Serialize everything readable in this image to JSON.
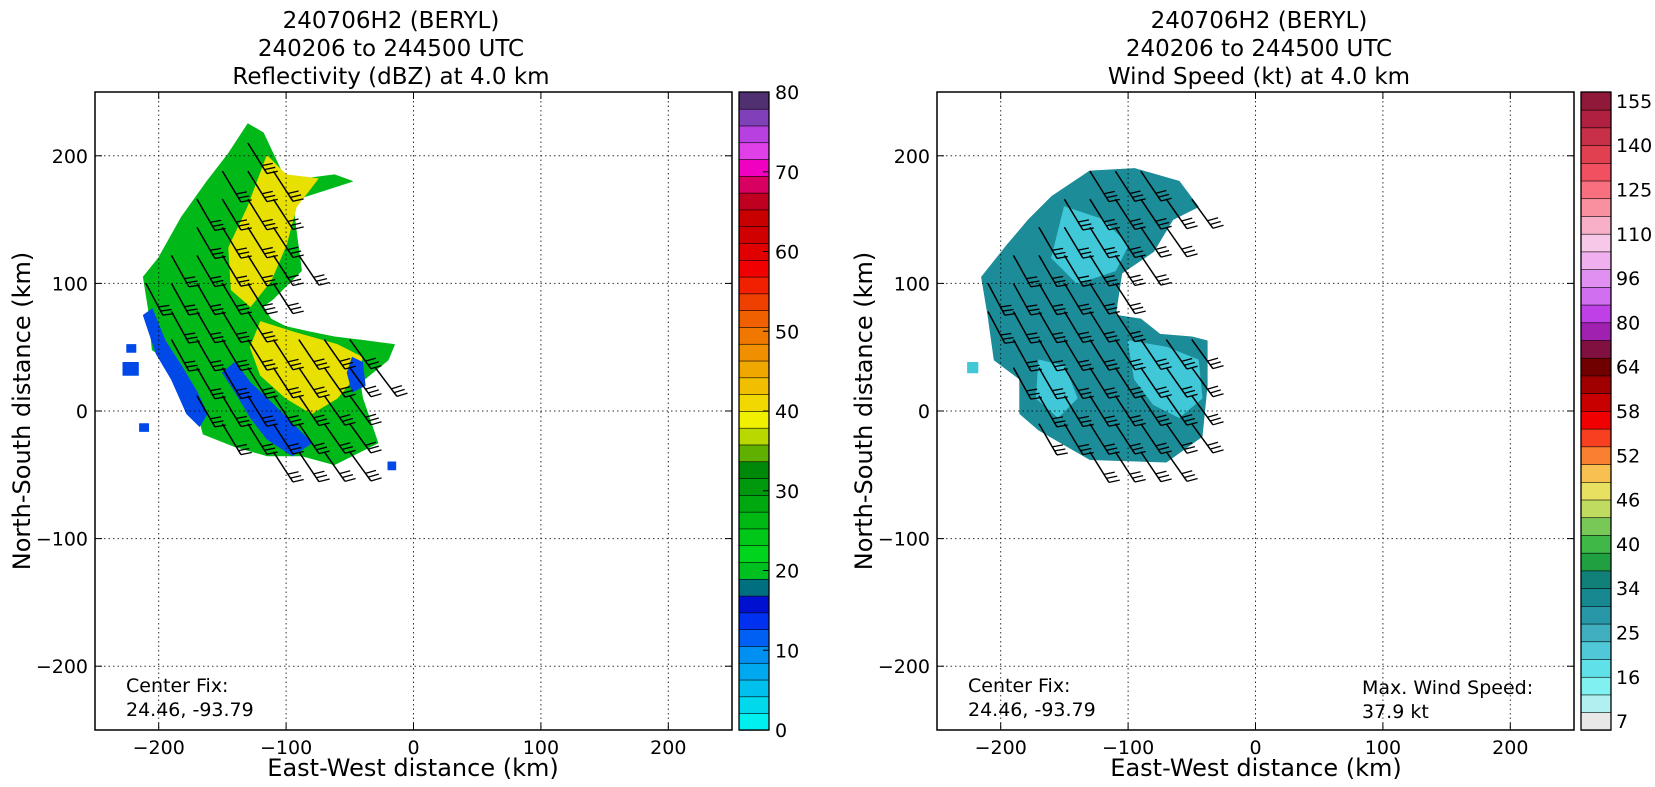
{
  "chart_data": [
    {
      "type": "heatmap",
      "title_lines": [
        "240706H2 (BERYL)",
        "240206 to 244500 UTC",
        "Reflectivity (dBZ) at 4.0 km"
      ],
      "xlabel": "East-West distance (km)",
      "ylabel": "North-South distance (km)",
      "xlim": [
        -250,
        250
      ],
      "ylim": [
        -250,
        250
      ],
      "xticks": [
        -200,
        -100,
        0,
        100,
        200
      ],
      "yticks": [
        -200,
        -100,
        0,
        100,
        200
      ],
      "grid": true,
      "annotation": {
        "line1": "Center Fix:",
        "line2": "24.46, -93.79"
      },
      "colorbar": {
        "min": 0,
        "max": 80,
        "step": 2.5,
        "ticks": [
          0,
          10,
          20,
          30,
          40,
          50,
          60,
          70,
          80
        ],
        "colors": [
          "#00f0f0",
          "#00d8ec",
          "#00c0ee",
          "#00a8f0",
          "#0090f2",
          "#0060f4",
          "#0030f0",
          "#0010d0",
          "#007080",
          "#00c020",
          "#00d41c",
          "#00c818",
          "#00b814",
          "#00a810",
          "#00980c",
          "#008808",
          "#60b000",
          "#b8d800",
          "#f0f000",
          "#f0d800",
          "#f0c000",
          "#f0a800",
          "#f09000",
          "#f07800",
          "#f06000",
          "#f04000",
          "#f02000",
          "#f00000",
          "#e00000",
          "#d00000",
          "#c80000",
          "#c00020",
          "#d80060",
          "#f000c0",
          "#e040e8",
          "#b840e0",
          "#8040b8",
          "#503070"
        ]
      },
      "field_region_outline": [
        [
          -130,
          225
        ],
        [
          -118,
          218
        ],
        [
          -100,
          180
        ],
        [
          -62,
          185
        ],
        [
          -48,
          180
        ],
        [
          -95,
          165
        ],
        [
          -92,
          140
        ],
        [
          -88,
          110
        ],
        [
          -110,
          88
        ],
        [
          -118,
          82
        ],
        [
          -112,
          72
        ],
        [
          -100,
          66
        ],
        [
          -82,
          62
        ],
        [
          -62,
          58
        ],
        [
          -38,
          55
        ],
        [
          -15,
          52
        ],
        [
          -20,
          40
        ],
        [
          -42,
          22
        ],
        [
          -40,
          10
        ],
        [
          -28,
          -25
        ],
        [
          -62,
          -42
        ],
        [
          -88,
          -35
        ],
        [
          -115,
          -35
        ],
        [
          -140,
          -28
        ],
        [
          -165,
          -18
        ],
        [
          -172,
          8
        ],
        [
          -178,
          30
        ],
        [
          -205,
          48
        ],
        [
          -208,
          80
        ],
        [
          -212,
          105
        ],
        [
          -200,
          120
        ],
        [
          -182,
          152
        ],
        [
          -162,
          180
        ],
        [
          -145,
          202
        ]
      ],
      "field_regions": [
        {
          "level": "green",
          "polygon": [
            [
              -130,
              225
            ],
            [
              -118,
              218
            ],
            [
              -100,
              180
            ],
            [
              -62,
              185
            ],
            [
              -48,
              180
            ],
            [
              -95,
              165
            ],
            [
              -92,
              140
            ],
            [
              -88,
              110
            ],
            [
              -110,
              88
            ],
            [
              -118,
              82
            ],
            [
              -112,
              72
            ],
            [
              -100,
              66
            ],
            [
              -82,
              62
            ],
            [
              -62,
              58
            ],
            [
              -38,
              55
            ],
            [
              -15,
              52
            ],
            [
              -20,
              40
            ],
            [
              -42,
              22
            ],
            [
              -40,
              10
            ],
            [
              -28,
              -25
            ],
            [
              -62,
              -42
            ],
            [
              -88,
              -35
            ],
            [
              -115,
              -35
            ],
            [
              -140,
              -28
            ],
            [
              -165,
              -18
            ],
            [
              -172,
              8
            ],
            [
              -178,
              30
            ],
            [
              -205,
              48
            ],
            [
              -208,
              80
            ],
            [
              -212,
              105
            ],
            [
              -200,
              120
            ],
            [
              -182,
              152
            ],
            [
              -162,
              180
            ],
            [
              -145,
              202
            ]
          ]
        },
        {
          "level": "yellow",
          "polygon": [
            [
              -115,
              200
            ],
            [
              -100,
              185
            ],
            [
              -75,
              182
            ],
            [
              -92,
              160
            ],
            [
              -100,
              130
            ],
            [
              -112,
              102
            ],
            [
              -128,
              82
            ],
            [
              -143,
              95
            ],
            [
              -145,
              128
            ],
            [
              -130,
              160
            ]
          ]
        },
        {
          "level": "yellow",
          "polygon": [
            [
              -120,
              70
            ],
            [
              -95,
              62
            ],
            [
              -60,
              52
            ],
            [
              -40,
              42
            ],
            [
              -45,
              28
            ],
            [
              -60,
              10
            ],
            [
              -80,
              -2
            ],
            [
              -100,
              10
            ],
            [
              -120,
              28
            ],
            [
              -128,
              50
            ]
          ]
        },
        {
          "level": "blue",
          "polygon": [
            [
              -205,
              80
            ],
            [
              -195,
              55
            ],
            [
              -182,
              35
            ],
            [
              -170,
              15
            ],
            [
              -162,
              -2
            ],
            [
              -168,
              -12
            ],
            [
              -178,
              -2
            ],
            [
              -190,
              25
            ],
            [
              -202,
              45
            ],
            [
              -212,
              75
            ]
          ]
        },
        {
          "level": "blue",
          "polygon": [
            [
              -150,
              30
            ],
            [
              -140,
              15
            ],
            [
              -128,
              -5
            ],
            [
              -115,
              -22
            ],
            [
              -95,
              -35
            ],
            [
              -80,
              -25
            ],
            [
              -95,
              -10
            ],
            [
              -110,
              5
            ],
            [
              -128,
              22
            ],
            [
              -140,
              38
            ]
          ]
        },
        {
          "level": "blue",
          "polygon": [
            [
              -48,
              42
            ],
            [
              -40,
              38
            ],
            [
              -38,
              20
            ],
            [
              -48,
              15
            ],
            [
              -52,
              30
            ]
          ]
        },
        {
          "level": "blue",
          "polygon": [
            [
              -225,
              52
            ],
            [
              -218,
              52
            ],
            [
              -218,
              46
            ],
            [
              -225,
              46
            ]
          ]
        },
        {
          "level": "blue",
          "polygon": [
            [
              -228,
              38
            ],
            [
              -216,
              38
            ],
            [
              -216,
              28
            ],
            [
              -228,
              28
            ]
          ]
        },
        {
          "level": "blue",
          "polygon": [
            [
              -215,
              -10
            ],
            [
              -208,
              -10
            ],
            [
              -208,
              -16
            ],
            [
              -215,
              -16
            ]
          ]
        },
        {
          "level": "blue",
          "polygon": [
            [
              -20,
              -40
            ],
            [
              -14,
              -40
            ],
            [
              -14,
              -46
            ],
            [
              -20,
              -46
            ]
          ]
        }
      ],
      "level_colors": {
        "green": "#00b818",
        "yellow": "#e8e000",
        "blue": "#0048e8",
        "lightblue": "#00c8ee",
        "darkgreen": "#009010"
      }
    },
    {
      "type": "heatmap",
      "title_lines": [
        "240706H2 (BERYL)",
        "240206 to 244500 UTC",
        "Wind Speed (kt) at 4.0 km"
      ],
      "xlabel": "East-West distance (km)",
      "ylabel": "North-South distance (km)",
      "xlim": [
        -250,
        250
      ],
      "ylim": [
        -250,
        250
      ],
      "xticks": [
        -200,
        -100,
        0,
        100,
        200
      ],
      "yticks": [
        -200,
        -100,
        0,
        100,
        200
      ],
      "grid": true,
      "annotation": {
        "line1": "Center Fix:",
        "line2": "24.46, -93.79"
      },
      "max_wind": {
        "line1": "Max. Wind Speed:",
        "line2": "37.9 kt"
      },
      "colorbar": {
        "ticks": [
          7,
          16,
          25,
          34,
          40,
          46,
          52,
          58,
          64,
          80,
          96,
          110,
          125,
          140,
          155
        ],
        "colors": [
          "#e8e8e8",
          "#b0f0f0",
          "#80f0f0",
          "#60e0e8",
          "#50c8d8",
          "#40b0c0",
          "#2898a8",
          "#188890",
          "#108078",
          "#20a040",
          "#40b848",
          "#78c858",
          "#c0dc60",
          "#e8e060",
          "#f8c050",
          "#f88030",
          "#f84020",
          "#f00000",
          "#c80000",
          "#a00000",
          "#700000",
          "#801040",
          "#a020b0",
          "#c040e8",
          "#d070f0",
          "#e090f0",
          "#f0b0f0",
          "#f8c8e8",
          "#f8b0c8",
          "#f890a0",
          "#f87080",
          "#f05060",
          "#e04050",
          "#c83048",
          "#b02040",
          "#901838"
        ]
      },
      "field_outline": [
        [
          -95,
          190
        ],
        [
          -60,
          180
        ],
        [
          -45,
          160
        ],
        [
          -65,
          150
        ],
        [
          -80,
          125
        ],
        [
          -105,
          108
        ],
        [
          -110,
          75
        ],
        [
          -90,
          72
        ],
        [
          -75,
          60
        ],
        [
          -50,
          58
        ],
        [
          -38,
          55
        ],
        [
          -38,
          20
        ],
        [
          -42,
          -20
        ],
        [
          -70,
          -40
        ],
        [
          -130,
          -38
        ],
        [
          -170,
          -15
        ],
        [
          -185,
          -2
        ],
        [
          -185,
          25
        ],
        [
          -205,
          40
        ],
        [
          -210,
          75
        ],
        [
          -215,
          105
        ],
        [
          -195,
          130
        ],
        [
          -178,
          150
        ],
        [
          -160,
          168
        ],
        [
          -130,
          188
        ]
      ],
      "field_regions": [
        {
          "level": "teal",
          "polygon": [
            [
              -95,
              190
            ],
            [
              -60,
              180
            ],
            [
              -45,
              160
            ],
            [
              -65,
              150
            ],
            [
              -80,
              125
            ],
            [
              -105,
              108
            ],
            [
              -110,
              75
            ],
            [
              -90,
              72
            ],
            [
              -75,
              60
            ],
            [
              -50,
              58
            ],
            [
              -38,
              55
            ],
            [
              -38,
              20
            ],
            [
              -42,
              -20
            ],
            [
              -70,
              -40
            ],
            [
              -130,
              -38
            ],
            [
              -170,
              -15
            ],
            [
              -185,
              -2
            ],
            [
              -185,
              25
            ],
            [
              -205,
              40
            ],
            [
              -210,
              75
            ],
            [
              -215,
              105
            ],
            [
              -195,
              130
            ],
            [
              -178,
              150
            ],
            [
              -160,
              168
            ],
            [
              -130,
              188
            ]
          ]
        },
        {
          "level": "light",
          "polygon": [
            [
              -150,
              160
            ],
            [
              -120,
              150
            ],
            [
              -100,
              130
            ],
            [
              -110,
              110
            ],
            [
              -140,
              100
            ],
            [
              -160,
              120
            ]
          ]
        },
        {
          "level": "light",
          "polygon": [
            [
              -100,
              55
            ],
            [
              -70,
              50
            ],
            [
              -45,
              40
            ],
            [
              -42,
              10
            ],
            [
              -60,
              -5
            ],
            [
              -80,
              5
            ],
            [
              -95,
              25
            ]
          ]
        },
        {
          "level": "light",
          "polygon": [
            [
              -170,
              40
            ],
            [
              -150,
              35
            ],
            [
              -140,
              10
            ],
            [
              -155,
              -5
            ],
            [
              -172,
              10
            ]
          ]
        },
        {
          "level": "light",
          "polygon": [
            [
              -226,
              38
            ],
            [
              -218,
              38
            ],
            [
              -218,
              30
            ],
            [
              -226,
              30
            ]
          ]
        }
      ],
      "level_colors": {
        "teal": "#1c8c98",
        "light": "#40c8d8"
      }
    }
  ]
}
